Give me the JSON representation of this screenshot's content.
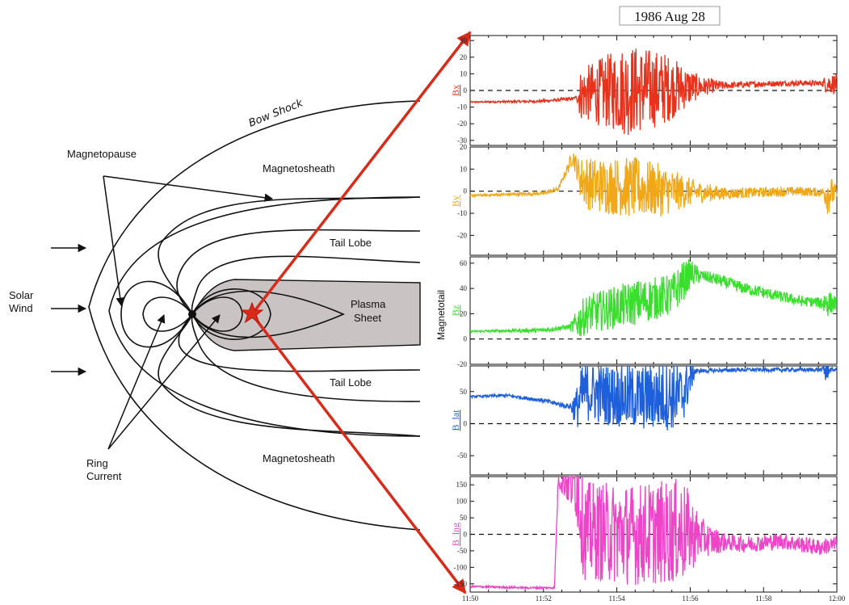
{
  "diagram": {
    "labels": {
      "bow_shock": "Bow Shock",
      "magnetopause": "Magnetopause",
      "magnetosheath_top": "Magnetosheath",
      "magnetosheath_bottom": "Magnetosheath",
      "tail_lobe_top": "Tail Lobe",
      "tail_lobe_bottom": "Tail Lobe",
      "plasma_sheet_1": "Plasma",
      "plasma_sheet_2": "Sheet",
      "solar_wind_1": "Solar",
      "solar_wind_2": "Wind",
      "ring_current_1": "Ring",
      "ring_current_2": "Current"
    },
    "colors": {
      "plasma_sheet": "#c9c3c3",
      "arrow": "#d92b1a",
      "lines": "#111111"
    }
  },
  "title": "1986 Aug 28",
  "ylabel": "Magnetotail",
  "chart_data": {
    "type": "line",
    "x_tick_labels": [
      "11:50",
      "11:52",
      "11:54",
      "11:56",
      "11:58",
      "12:00"
    ],
    "x_ticks": [
      0,
      2,
      4,
      6,
      8,
      10
    ],
    "x_range": [
      0,
      10
    ],
    "panels": [
      {
        "name": "Bx",
        "label": "Bx",
        "color": "#e8321c",
        "ylim": [
          -33,
          33
        ],
        "yticks": [
          30,
          20,
          10,
          0,
          -10,
          -20,
          -30
        ],
        "ytick_labels": [
          "30",
          "20",
          "10",
          "0",
          "-10",
          "-20",
          "-30"
        ],
        "base": [
          [
            0,
            -7
          ],
          [
            1.9,
            -6.5
          ],
          [
            2.8,
            -5
          ],
          [
            3.1,
            -2
          ],
          [
            4.0,
            0
          ],
          [
            5.0,
            1
          ],
          [
            6.0,
            2
          ],
          [
            7.0,
            3
          ],
          [
            8.0,
            4
          ],
          [
            9.0,
            4.5
          ],
          [
            10,
            4
          ]
        ],
        "noise": [
          [
            0,
            0.4
          ],
          [
            2.5,
            1
          ],
          [
            2.9,
            1
          ],
          [
            3.0,
            15
          ],
          [
            4.3,
            28
          ],
          [
            5.3,
            22
          ],
          [
            6.3,
            6
          ],
          [
            7.0,
            2
          ],
          [
            9.6,
            1.5
          ],
          [
            9.7,
            6
          ],
          [
            10,
            6
          ]
        ]
      },
      {
        "name": "By",
        "label": "By",
        "color": "#f0a818",
        "ylim": [
          -29,
          20
        ],
        "yticks": [
          20,
          10,
          0,
          -10,
          -20
        ],
        "ytick_labels": [
          "20",
          "10",
          "0",
          "-10",
          "-20"
        ],
        "base": [
          [
            0,
            -2
          ],
          [
            2.0,
            -1
          ],
          [
            2.4,
            1
          ],
          [
            2.65,
            10
          ],
          [
            2.8,
            16
          ],
          [
            3.0,
            6
          ],
          [
            3.3,
            3
          ],
          [
            4.2,
            2
          ],
          [
            5.5,
            0
          ],
          [
            7.0,
            -1
          ],
          [
            9.0,
            0
          ],
          [
            10,
            -1
          ]
        ],
        "noise": [
          [
            0,
            0.6
          ],
          [
            2.5,
            1
          ],
          [
            2.9,
            5
          ],
          [
            3.1,
            12
          ],
          [
            4.5,
            14
          ],
          [
            5.2,
            12
          ],
          [
            6.2,
            5
          ],
          [
            7.0,
            2.5
          ],
          [
            9.6,
            2
          ],
          [
            9.75,
            10
          ],
          [
            10,
            3
          ]
        ]
      },
      {
        "name": "Bz",
        "label": "Bz",
        "color": "#38e02c",
        "ylim": [
          -20,
          65
        ],
        "yticks": [
          60,
          40,
          20,
          0,
          -20
        ],
        "ytick_labels": [
          "60",
          "40",
          "20",
          "0",
          "-20"
        ],
        "base": [
          [
            0,
            6
          ],
          [
            2.0,
            7
          ],
          [
            2.8,
            10
          ],
          [
            3.2,
            20
          ],
          [
            4.4,
            28
          ],
          [
            5.5,
            35
          ],
          [
            6.0,
            52
          ],
          [
            6.6,
            48
          ],
          [
            7.5,
            40
          ],
          [
            9.0,
            30
          ],
          [
            10,
            28
          ]
        ],
        "noise": [
          [
            0,
            0.8
          ],
          [
            2.7,
            2
          ],
          [
            3.0,
            15
          ],
          [
            4.5,
            18
          ],
          [
            5.8,
            16
          ],
          [
            6.3,
            5
          ],
          [
            9.5,
            4
          ],
          [
            9.7,
            12
          ],
          [
            10,
            5
          ]
        ]
      },
      {
        "name": "Btot",
        "label": "B_lat",
        "color": "#1e5fdc",
        "ylim": [
          -80,
          90
        ],
        "yticks": [
          50,
          0,
          -50
        ],
        "ytick_labels": [
          "50",
          "0",
          "-50"
        ],
        "base": [
          [
            0,
            42
          ],
          [
            1.0,
            44
          ],
          [
            2.0,
            36
          ],
          [
            2.6,
            28
          ],
          [
            2.9,
            25
          ],
          [
            3.1,
            50
          ],
          [
            4.5,
            40
          ],
          [
            5.8,
            45
          ],
          [
            6.1,
            82
          ],
          [
            7.5,
            84
          ],
          [
            9.0,
            84
          ],
          [
            10,
            84
          ]
        ],
        "noise": [
          [
            0,
            1.5
          ],
          [
            2.7,
            4
          ],
          [
            3.0,
            45
          ],
          [
            5.5,
            55
          ],
          [
            5.9,
            40
          ],
          [
            6.2,
            3
          ],
          [
            9.6,
            3
          ],
          [
            9.7,
            30
          ],
          [
            9.8,
            3
          ],
          [
            10,
            3
          ]
        ]
      },
      {
        "name": "Blong",
        "label": "B_lng",
        "color": "#ee44c8",
        "ylim": [
          -175,
          175
        ],
        "yticks": [
          150,
          100,
          50,
          0,
          -50,
          -100,
          -150
        ],
        "ytick_labels": [
          "150",
          "100",
          "50",
          "0",
          "-50",
          "-100",
          "-150"
        ],
        "base": [
          [
            0,
            -158
          ],
          [
            1.5,
            -162
          ],
          [
            2.3,
            -162
          ],
          [
            2.4,
            165
          ],
          [
            2.9,
            165
          ],
          [
            3.1,
            10
          ],
          [
            4.5,
            0
          ],
          [
            5.8,
            10
          ],
          [
            6.6,
            -20
          ],
          [
            7.5,
            -30
          ],
          [
            8.5,
            -20
          ],
          [
            9.5,
            -40
          ],
          [
            10,
            -30
          ]
        ],
        "noise": [
          [
            0,
            3
          ],
          [
            2.3,
            3
          ],
          [
            3.0,
            150
          ],
          [
            5.8,
            160
          ],
          [
            6.3,
            60
          ],
          [
            7.0,
            25
          ],
          [
            10,
            25
          ]
        ]
      }
    ]
  }
}
